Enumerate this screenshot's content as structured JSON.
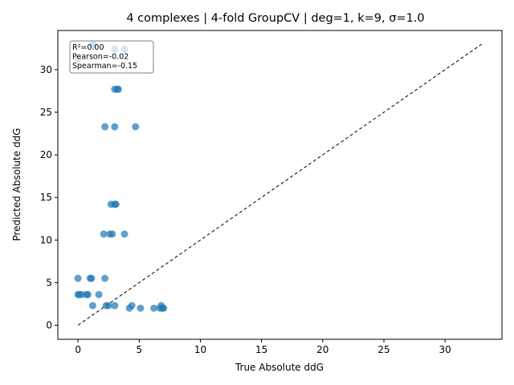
{
  "chart_data": {
    "type": "scatter",
    "title": "4 complexes | 4-fold GroupCV | deg=1, k=9, σ=1.0",
    "xlabel": "True Absolute ddG",
    "ylabel": "Predicted Absolute ddG",
    "xlim": [
      -1.65,
      34.65
    ],
    "ylim": [
      -1.65,
      34.6
    ],
    "xticks": [
      "0",
      "5",
      "10",
      "15",
      "20",
      "25",
      "30"
    ],
    "yticks": [
      "0",
      "5",
      "10",
      "15",
      "20",
      "25",
      "30"
    ],
    "grid": false,
    "point_color": "#1f77b4",
    "annotation": [
      "R²=0.00",
      "Pearson=-0.02",
      "Spearman=-0.15"
    ],
    "annotation_placement": "top-left",
    "reference_line": {
      "style": "dashed",
      "color": "#000000",
      "x": [
        0,
        33
      ],
      "y": [
        0,
        33
      ]
    },
    "points": [
      {
        "x": 0.0,
        "y": 31.2
      },
      {
        "x": 1.2,
        "y": 32.9
      },
      {
        "x": 1.3,
        "y": 32.9
      },
      {
        "x": 3.0,
        "y": 32.4
      },
      {
        "x": 3.8,
        "y": 32.4
      },
      {
        "x": 3.0,
        "y": 27.7
      },
      {
        "x": 3.2,
        "y": 27.7
      },
      {
        "x": 3.3,
        "y": 27.7
      },
      {
        "x": 2.2,
        "y": 23.3
      },
      {
        "x": 3.0,
        "y": 23.3
      },
      {
        "x": 4.7,
        "y": 23.3
      },
      {
        "x": 2.7,
        "y": 14.2
      },
      {
        "x": 3.0,
        "y": 14.2
      },
      {
        "x": 3.1,
        "y": 14.2
      },
      {
        "x": 2.1,
        "y": 10.7
      },
      {
        "x": 2.6,
        "y": 10.7
      },
      {
        "x": 2.8,
        "y": 10.7
      },
      {
        "x": 3.8,
        "y": 10.7
      },
      {
        "x": 0.0,
        "y": 5.5
      },
      {
        "x": 1.0,
        "y": 5.5
      },
      {
        "x": 1.1,
        "y": 5.5
      },
      {
        "x": 2.2,
        "y": 5.5
      },
      {
        "x": 0.0,
        "y": 3.6
      },
      {
        "x": 0.1,
        "y": 3.6
      },
      {
        "x": 0.3,
        "y": 3.6
      },
      {
        "x": 0.7,
        "y": 3.6
      },
      {
        "x": 0.8,
        "y": 3.6
      },
      {
        "x": 1.7,
        "y": 3.6
      },
      {
        "x": 1.2,
        "y": 2.3
      },
      {
        "x": 2.3,
        "y": 2.3
      },
      {
        "x": 2.5,
        "y": 2.3
      },
      {
        "x": 3.0,
        "y": 2.3
      },
      {
        "x": 4.2,
        "y": 2.0
      },
      {
        "x": 4.4,
        "y": 2.3
      },
      {
        "x": 5.1,
        "y": 2.0
      },
      {
        "x": 6.2,
        "y": 2.0
      },
      {
        "x": 6.7,
        "y": 2.0
      },
      {
        "x": 6.8,
        "y": 2.3
      },
      {
        "x": 6.9,
        "y": 2.0
      },
      {
        "x": 7.0,
        "y": 2.0
      }
    ]
  }
}
